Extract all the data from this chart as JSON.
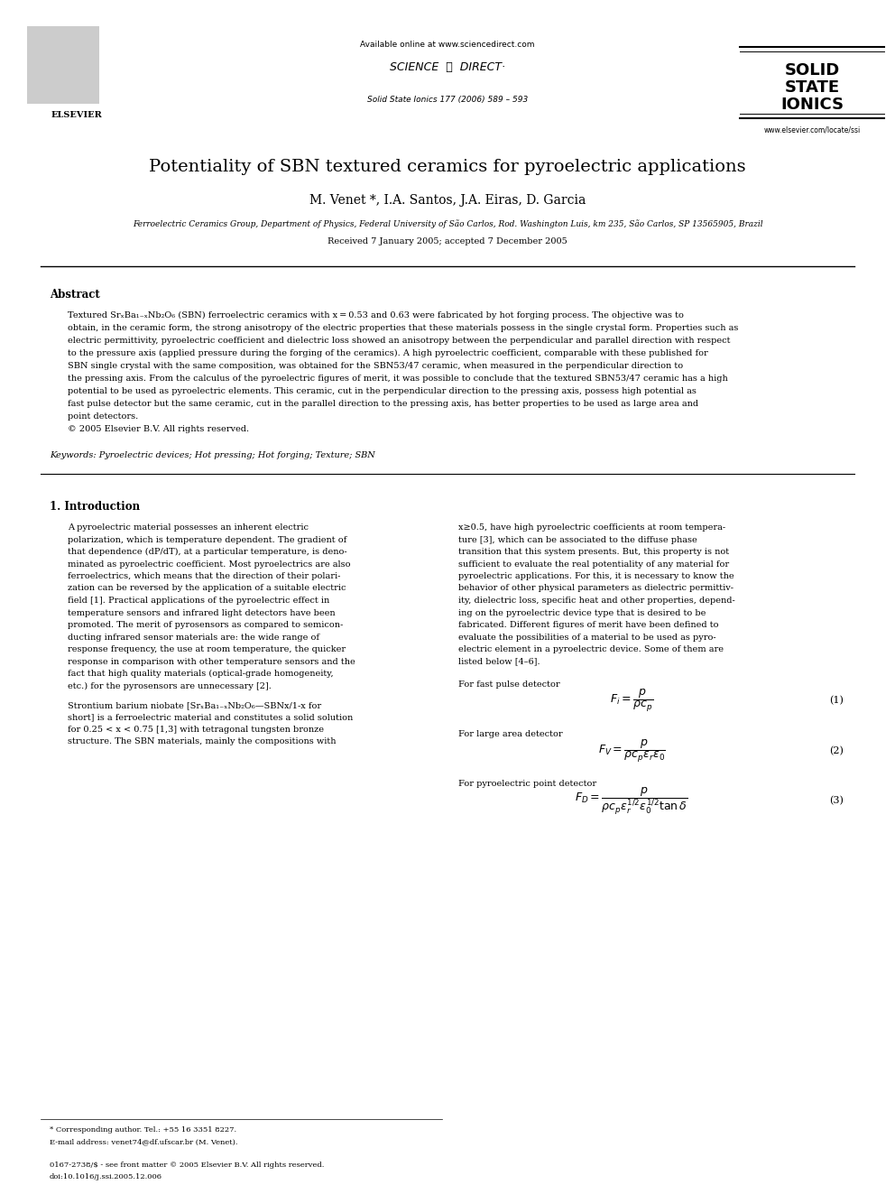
{
  "page_width": 9.92,
  "page_height": 13.23,
  "bg_color": "#ffffff",
  "header": {
    "available_online": "Available online at www.sciencedirect.com",
    "journal_info": "Solid State Ionics 177 (2006) 589 – 593",
    "journal_name_line1": "SOLID",
    "journal_name_line2": "STATE",
    "journal_name_line3": "IONICS",
    "journal_url": "www.elsevier.com/locate/ssi",
    "elsevier_label": "ELSEVIER"
  },
  "title": "Potentiality of SBN textured ceramics for pyroelectric applications",
  "authors": "M. Venet *, I.A. Santos, J.A. Eiras, D. Garcia",
  "affiliation": "Ferroelectric Ceramics Group, Department of Physics, Federal University of São Carlos, Rod. Washington Luis, km 235, São Carlos, SP 13565905, Brazil",
  "received": "Received 7 January 2005; accepted 7 December 2005",
  "abstract_title": "Abstract",
  "abstract_text": "Textured SrₓBa₁₋ₓNb₂O₆ (SBN) ferroelectric ceramics with x = 0.53 and 0.63 were fabricated by hot forging process. The objective was to obtain, in the ceramic form, the strong anisotropy of the electric properties that these materials possess in the single crystal form. Properties such as electric permittivity, pyroelectric coefficient and dielectric loss showed an anisotropy between the perpendicular and parallel direction with respect to the pressure axis (applied pressure during the forging of the ceramics). A high pyroelectric coefficient, comparable with these published for SBN single crystal with the same composition, was obtained for the SBN53/47 ceramic, when measured in the perpendicular direction to the pressing axis. From the calculus of the pyroelectric figures of merit, it was possible to conclude that the textured SBN53/47 ceramic has a high potential to be used as pyroelectric elements. This ceramic, cut in the perpendicular direction to the pressing axis, possess high potential as fast pulse detector but the same ceramic, cut in the parallel direction to the pressing axis, has better properties to be used as large area and point detectors.",
  "copyright": "© 2005 Elsevier B.V. All rights reserved.",
  "keywords": "Keywords: Pyroelectric devices; Hot pressing; Hot forging; Texture; SBN",
  "section1_title": "1. Introduction",
  "col1_para1": "A pyroelectric material possesses an inherent electric polarization, which is temperature dependent. The gradient of that dependence (dP/dT), at a particular temperature, is denominated as pyroelectric coefficient. Most pyroelectrics are also ferroelectrics, which means that the direction of their polarization can be reversed by the application of a suitable electric field [1]. Practical applications of the pyroelectric effect in temperature sensors and infrared light detectors have been promoted. The merit of pyrosensors as compared to semiconducting infrared sensor materials are: the wide range of response frequency, the use at room temperature, the quicker response in comparison with other temperature sensors and the fact that high quality materials (optical-grade homogeneity, etc.) for the pyrosensors are unnecessary [2].",
  "col1_para2": "Strontium barium niobate [SrₓBa₁₋ₓNb₂O₆—SBNx/1-x for short] is a ferroelectric material and constitutes a solid solution for 0.25 < x < 0.75 [1,3] with tetragonal tungsten bronze structure. The SBN materials, mainly the compositions with",
  "col2_para1": "x≥0.5, have high pyroelectric coefficients at room temperature [3], which can be associated to the diffuse phase transition that this system presents. But, this property is not sufficient to evaluate the real potentiality of any material for pyroelectric applications. For this, it is necessary to know the behavior of other physical parameters as dielectric permittivity, dielectric loss, specific heat and other properties, depending on the pyroelectric device type that is desired to be fabricated. Different figures of merit have been defined to evaluate the possibilities of a material to be used as pyroelectric element in a pyroelectric device. Some of them are listed below [4–6].",
  "for_fast_pulse": "For fast pulse detector",
  "eq1": "$F_i = \\dfrac{p}{\\rho c_p}$",
  "eq1_num": "(1)",
  "for_large_area": "For large area detector",
  "eq2": "$F_V = \\dfrac{p}{\\rho c_p \\varepsilon_r \\varepsilon_0}$",
  "eq2_num": "(2)",
  "for_point": "For pyroelectric point detector",
  "eq3": "$F_D = \\dfrac{p}{\\rho c_p \\varepsilon_r^{1/2} \\varepsilon_0^{1/2} \\tan\\delta}$",
  "eq3_num": "(3)",
  "footer_line1": "* Corresponding author. Tel.: +55 16 3351 8227.",
  "footer_line2": "E-mail address: venet74@df.ufscar.br (M. Venet).",
  "footer_line3": "0167-2738/$ - see front matter © 2005 Elsevier B.V. All rights reserved.",
  "footer_line4": "doi:10.1016/j.ssi.2005.12.006"
}
